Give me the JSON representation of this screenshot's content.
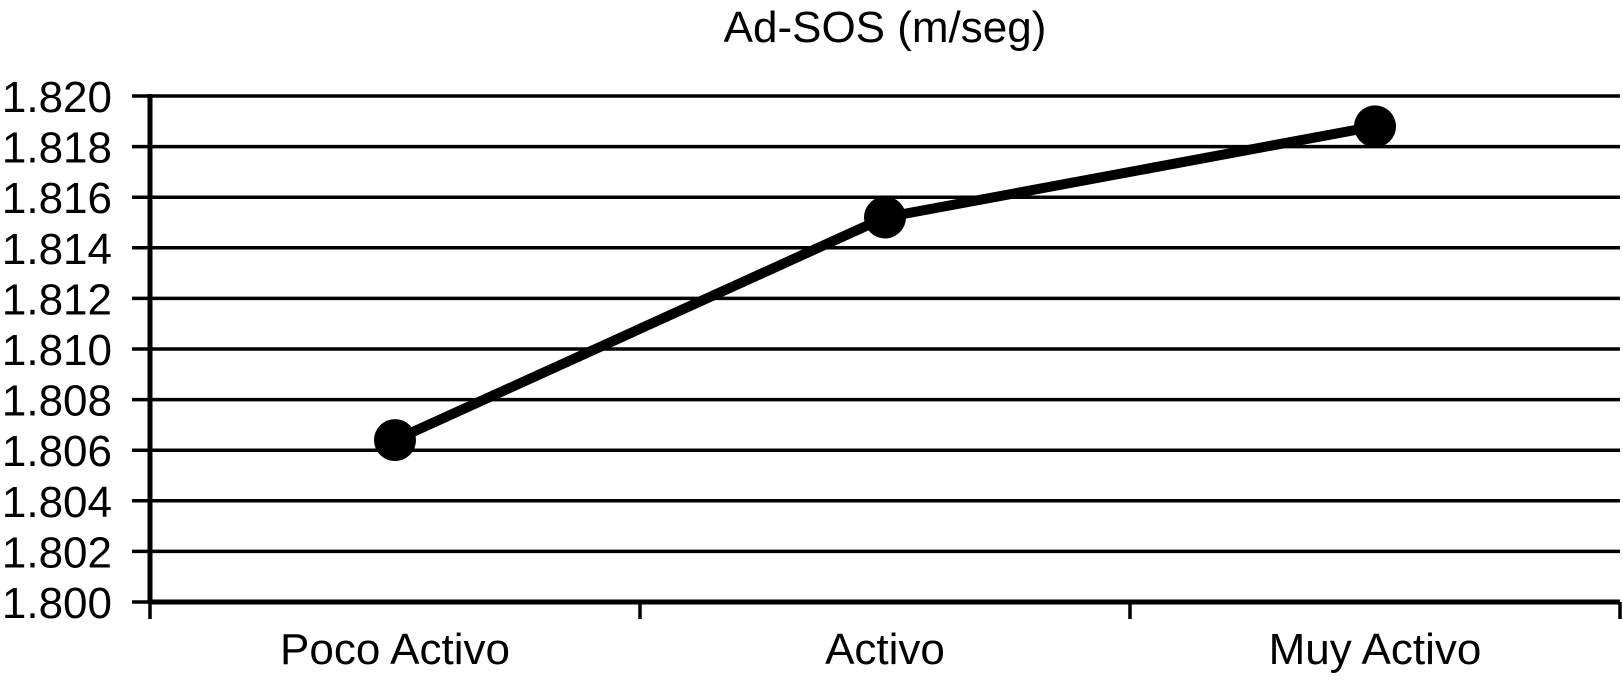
{
  "chart_data": {
    "type": "line",
    "title": "Ad-SOS (m/seg)",
    "categories": [
      "Poco Activo",
      "Activo",
      "Muy Activo"
    ],
    "values": [
      1.8064,
      1.8152,
      1.8188
    ],
    "xlabel": "",
    "ylabel": "",
    "ylim": [
      1.8,
      1.82
    ],
    "ytick_step": 0.002,
    "ytick_labels": [
      "1.800",
      "1.802",
      "1.804",
      "1.806",
      "1.808",
      "1.810",
      "1.812",
      "1.814",
      "1.816",
      "1.818",
      "1.820"
    ],
    "grid": "horizontal",
    "legend_position": "none",
    "marker": "filled-circle",
    "line_color": "#000000",
    "text_color": "#000000",
    "background_color": "#ffffff"
  }
}
